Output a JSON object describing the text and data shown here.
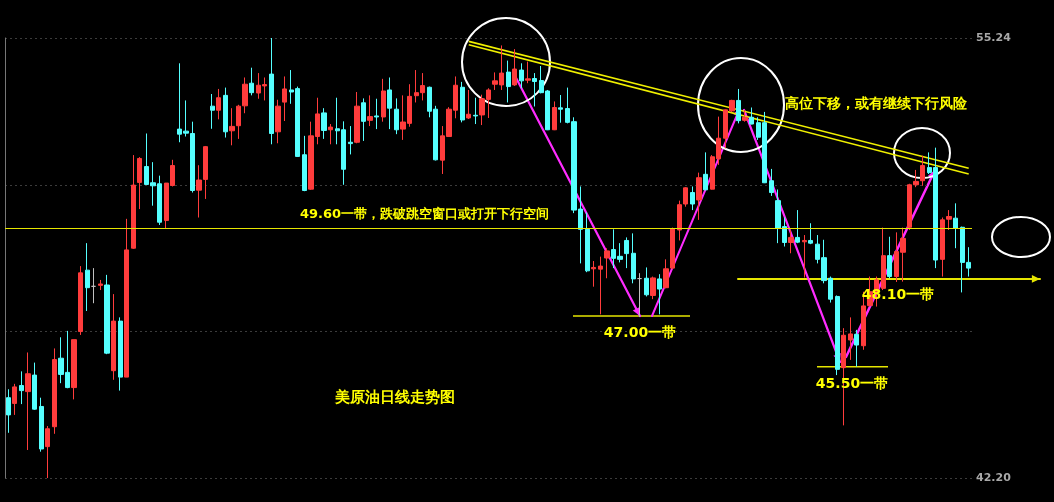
{
  "chart_data": {
    "type": "candlestick",
    "title": "美原油日线走势图",
    "categories": [
      null,
      null,
      null,
      null,
      null,
      null,
      null,
      null,
      null,
      null,
      null,
      null,
      null,
      null,
      null,
      null,
      null,
      null,
      null,
      null,
      null,
      null,
      null,
      null,
      null,
      null,
      null,
      null,
      null,
      null,
      null,
      null,
      null,
      null,
      null,
      null,
      null,
      null,
      null,
      null,
      null,
      null,
      null,
      null,
      null,
      null,
      null,
      null,
      null,
      null,
      null,
      null,
      null,
      null,
      null,
      null,
      null,
      null,
      null,
      null,
      null,
      null,
      null,
      null,
      null,
      null,
      null,
      null,
      null,
      null,
      null,
      null,
      null,
      null,
      null,
      null,
      null,
      null,
      null,
      null,
      null,
      null,
      null,
      null,
      null,
      null,
      null,
      null,
      null,
      null,
      null,
      null,
      null,
      null,
      null,
      null,
      null,
      null,
      null,
      null,
      null,
      null,
      null,
      null,
      null,
      null,
      null,
      null,
      null,
      null,
      null,
      null,
      null,
      null,
      null,
      null,
      null,
      null,
      null,
      null,
      null,
      null,
      null,
      null,
      null,
      null,
      null,
      null,
      null,
      null,
      null,
      null,
      null,
      null,
      null,
      null,
      null,
      null,
      null,
      null,
      null,
      null,
      null,
      null,
      null,
      null,
      null
    ],
    "ohlc": [
      [
        44.58,
        44.83,
        43.54,
        44.07
      ],
      [
        44.41,
        44.99,
        44.07,
        44.9
      ],
      [
        44.94,
        45.36,
        44.39,
        44.79
      ],
      [
        44.76,
        45.92,
        43.03,
        45.29
      ],
      [
        45.25,
        45.62,
        44.22,
        44.24
      ],
      [
        44.32,
        44.58,
        42.98,
        43.06
      ],
      [
        43.13,
        43.74,
        42.2,
        43.66
      ],
      [
        43.72,
        46.04,
        43.51,
        45.71
      ],
      [
        45.75,
        46.37,
        45.01,
        45.27
      ],
      [
        45.33,
        46.56,
        44.86,
        44.88
      ],
      [
        44.88,
        46.3,
        44.53,
        46.3
      ],
      [
        46.54,
        48.48,
        46.44,
        48.28
      ],
      [
        48.36,
        49.16,
        47.15,
        47.84
      ],
      [
        47.88,
        48.42,
        47.38,
        47.88
      ],
      [
        47.91,
        48.07,
        47.77,
        47.95
      ],
      [
        47.92,
        48.22,
        45.87,
        45.9
      ],
      [
        45.38,
        47.65,
        45.11,
        46.85
      ],
      [
        46.85,
        46.96,
        44.79,
        45.19
      ],
      [
        45.19,
        49.88,
        45.19,
        48.96
      ],
      [
        49.01,
        51.77,
        48.99,
        50.88
      ],
      [
        50.96,
        51.71,
        50.17,
        51.67
      ],
      [
        51.43,
        52.41,
        50.9,
        50.9
      ],
      [
        50.95,
        51.56,
        50.27,
        50.86
      ],
      [
        50.92,
        51.16,
        49.7,
        49.78
      ],
      [
        49.83,
        50.94,
        49.58,
        50.94
      ],
      [
        50.87,
        51.63,
        50.84,
        51.46
      ],
      [
        52.54,
        54.49,
        52.15,
        52.39
      ],
      [
        52.48,
        53.39,
        52.32,
        52.42
      ],
      [
        52.41,
        52.76,
        50.66,
        50.72
      ],
      [
        50.73,
        51.47,
        49.92,
        51.03
      ],
      [
        51.05,
        52.04,
        50.47,
        52.02
      ],
      [
        53.22,
        53.58,
        52.55,
        53.1
      ],
      [
        53.1,
        53.73,
        52.83,
        53.47
      ],
      [
        53.54,
        53.77,
        52.29,
        52.46
      ],
      [
        52.49,
        53.16,
        52.06,
        52.62
      ],
      [
        52.64,
        53.26,
        52.25,
        53.22
      ],
      [
        53.23,
        54.07,
        53.01,
        53.87
      ],
      [
        53.9,
        54.36,
        53.54,
        53.62
      ],
      [
        53.61,
        54.2,
        53.44,
        53.84
      ],
      [
        53.82,
        54.07,
        53.39,
        53.86
      ],
      [
        54.17,
        55.24,
        52.09,
        52.41
      ],
      [
        52.46,
        53.41,
        52.12,
        53.22
      ],
      [
        53.34,
        54.1,
        52.78,
        53.73
      ],
      [
        53.7,
        54.29,
        53.29,
        53.64
      ],
      [
        53.74,
        53.8,
        51.72,
        51.73
      ],
      [
        51.78,
        52.34,
        50.7,
        50.72
      ],
      [
        50.76,
        52.76,
        50.74,
        52.34
      ],
      [
        52.32,
        53.47,
        52.09,
        52.99
      ],
      [
        53.02,
        53.16,
        52.25,
        52.5
      ],
      [
        52.52,
        52.69,
        52.09,
        52.6
      ],
      [
        52.55,
        53.47,
        52.09,
        52.49
      ],
      [
        52.52,
        52.77,
        50.89,
        51.35
      ],
      [
        52.15,
        52.63,
        51.79,
        52.11
      ],
      [
        52.15,
        53.64,
        52.12,
        53.22
      ],
      [
        53.32,
        53.45,
        52.19,
        52.77
      ],
      [
        52.8,
        53.54,
        52.63,
        52.91
      ],
      [
        52.93,
        53.44,
        52.54,
        52.9
      ],
      [
        52.9,
        54.03,
        52.76,
        53.67
      ],
      [
        53.7,
        54.07,
        52.54,
        53.16
      ],
      [
        53.13,
        53.45,
        52.39,
        52.52
      ],
      [
        52.54,
        53.54,
        52.22,
        52.75
      ],
      [
        52.71,
        53.87,
        52.61,
        53.51
      ],
      [
        53.53,
        54.29,
        53.33,
        53.62
      ],
      [
        53.62,
        54.2,
        53.39,
        53.83
      ],
      [
        53.78,
        53.8,
        52.89,
        53.07
      ],
      [
        53.13,
        53.23,
        51.61,
        51.63
      ],
      [
        51.62,
        52.63,
        51.21,
        52.34
      ],
      [
        52.32,
        53.19,
        52.31,
        53.13
      ],
      [
        53.1,
        54.1,
        52.86,
        53.84
      ],
      [
        53.78,
        53.94,
        52.74,
        52.81
      ],
      [
        52.87,
        53.7,
        52.84,
        52.98
      ],
      [
        52.95,
        53.47,
        52.69,
        52.93
      ],
      [
        52.96,
        53.56,
        52.66,
        53.44
      ],
      [
        53.42,
        53.75,
        52.87,
        53.7
      ],
      [
        53.87,
        54.22,
        53.7,
        53.97
      ],
      [
        53.85,
        55.02,
        53.7,
        54.2
      ],
      [
        54.23,
        54.57,
        53.33,
        53.8
      ],
      [
        53.85,
        54.91,
        53.82,
        54.32
      ],
      [
        54.29,
        54.49,
        53.75,
        53.97
      ],
      [
        53.99,
        54.54,
        53.9,
        54.03
      ],
      [
        54.04,
        54.2,
        53.21,
        53.95
      ],
      [
        53.98,
        54.41,
        53.6,
        53.62
      ],
      [
        53.67,
        53.7,
        52.51,
        52.52
      ],
      [
        52.52,
        53.36,
        52.51,
        53.18
      ],
      [
        53.17,
        53.55,
        52.73,
        53.13
      ],
      [
        53.15,
        53.77,
        52.71,
        52.74
      ],
      [
        52.76,
        52.89,
        50.05,
        50.14
      ],
      [
        50.17,
        50.84,
        48.56,
        49.57
      ],
      [
        49.57,
        50.07,
        48.3,
        48.34
      ],
      [
        48.4,
        48.63,
        47.87,
        48.44
      ],
      [
        48.39,
        48.76,
        47.05,
        48.48
      ],
      [
        48.72,
        49.01,
        48.12,
        48.93
      ],
      [
        48.97,
        49.57,
        48.42,
        48.71
      ],
      [
        48.77,
        49.16,
        48.59,
        48.68
      ],
      [
        49.24,
        49.33,
        48.42,
        48.85
      ],
      [
        48.86,
        49.45,
        47.97,
        48.1
      ],
      [
        48.11,
        48.27,
        46.98,
        48.11
      ],
      [
        48.12,
        48.44,
        47.58,
        47.63
      ],
      [
        47.61,
        48.17,
        47.5,
        48.13
      ],
      [
        48.1,
        48.24,
        47.05,
        47.8
      ],
      [
        47.84,
        48.68,
        47.82,
        48.4
      ],
      [
        48.42,
        49.62,
        48.39,
        49.58
      ],
      [
        49.55,
        50.42,
        49.24,
        50.3
      ],
      [
        50.32,
        50.82,
        50.24,
        50.8
      ],
      [
        50.66,
        50.84,
        50.14,
        50.32
      ],
      [
        50.44,
        51.25,
        49.85,
        51.1
      ],
      [
        51.2,
        51.85,
        50.73,
        50.74
      ],
      [
        50.76,
        51.77,
        50.75,
        51.72
      ],
      [
        51.66,
        52.91,
        51.48,
        52.27
      ],
      [
        52.27,
        53.12,
        51.97,
        53.11
      ],
      [
        53.08,
        53.41,
        53.04,
        53.39
      ],
      [
        53.39,
        53.73,
        52.71,
        52.79
      ],
      [
        52.8,
        53.11,
        52.76,
        52.89
      ],
      [
        52.89,
        53.18,
        52.68,
        52.69
      ],
      [
        52.73,
        52.89,
        52.22,
        52.3
      ],
      [
        52.73,
        53.05,
        50.94,
        50.95
      ],
      [
        51.01,
        51.36,
        50.56,
        50.66
      ],
      [
        50.42,
        50.75,
        49.16,
        49.6
      ],
      [
        49.65,
        49.92,
        49.06,
        49.18
      ],
      [
        49.18,
        49.55,
        48.86,
        49.33
      ],
      [
        49.33,
        50.14,
        49.16,
        49.19
      ],
      [
        49.2,
        49.4,
        48.14,
        49.24
      ],
      [
        49.24,
        49.75,
        49.13,
        49.16
      ],
      [
        49.13,
        49.4,
        48.56,
        48.68
      ],
      [
        48.73,
        49.26,
        47.97,
        48.05
      ],
      [
        48.12,
        48.17,
        47.4,
        47.5
      ],
      [
        47.58,
        47.61,
        45.25,
        45.42
      ],
      [
        45.47,
        46.64,
        43.76,
        46.43
      ],
      [
        46.29,
        46.96,
        45.7,
        46.47
      ],
      [
        46.46,
        46.59,
        45.5,
        46.14
      ],
      [
        46.12,
        47.72,
        46.0,
        47.3
      ],
      [
        47.31,
        48.17,
        47.28,
        47.72
      ],
      [
        47.72,
        48.17,
        47.28,
        48.07
      ],
      [
        47.82,
        49.62,
        47.77,
        48.79
      ],
      [
        48.79,
        49.35,
        48.12,
        48.17
      ],
      [
        48.17,
        49.48,
        48.01,
        48.91
      ],
      [
        48.89,
        49.62,
        48.02,
        49.3
      ],
      [
        49.63,
        50.92,
        49.55,
        50.89
      ],
      [
        50.89,
        51.33,
        50.82,
        50.99
      ],
      [
        51.01,
        51.75,
        50.86,
        51.46
      ],
      [
        51.4,
        51.85,
        51.21,
        51.25
      ],
      [
        51.4,
        51.99,
        48.42,
        48.66
      ],
      [
        48.68,
        49.92,
        48.17,
        49.85
      ],
      [
        49.87,
        50.14,
        49.55,
        49.95
      ],
      [
        49.9,
        50.34,
        49.01,
        49.6
      ],
      [
        49.63,
        49.65,
        47.7,
        48.59
      ],
      [
        48.59,
        49.04,
        48.17,
        48.42
      ]
    ],
    "colors": [
      "#55ffff",
      "#ff3c3c",
      "#55ffff",
      "#ff3c3c",
      "#55ffff",
      "#55ffff",
      "#ff3c3c",
      "#ff3c3c",
      "#55ffff",
      "#55ffff",
      "#ff3c3c",
      "#ff3c3c",
      "#55ffff",
      "#c0c0c0",
      "#ff3c3c",
      "#55ffff",
      "#ff3c3c",
      "#55ffff",
      "#ff3c3c",
      "#ff3c3c",
      "#ff3c3c",
      "#55ffff",
      "#55ffff",
      "#55ffff",
      "#ff3c3c",
      "#ff3c3c",
      "#55ffff",
      "#55ffff",
      "#55ffff",
      "#ff3c3c",
      "#ff3c3c",
      "#55ffff",
      "#ff3c3c",
      "#55ffff",
      "#ff3c3c",
      "#ff3c3c",
      "#ff3c3c",
      "#55ffff",
      "#ff3c3c",
      "#ff3c3c",
      "#55ffff",
      "#ff3c3c",
      "#ff3c3c",
      "#55ffff",
      "#55ffff",
      "#55ffff",
      "#ff3c3c",
      "#ff3c3c",
      "#55ffff",
      "#ff3c3c",
      "#55ffff",
      "#55ffff",
      "#55ffff",
      "#ff3c3c",
      "#55ffff",
      "#ff3c3c",
      "#55ffff",
      "#ff3c3c",
      "#55ffff",
      "#55ffff",
      "#ff3c3c",
      "#ff3c3c",
      "#ff3c3c",
      "#ff3c3c",
      "#55ffff",
      "#55ffff",
      "#ff3c3c",
      "#ff3c3c",
      "#ff3c3c",
      "#55ffff",
      "#ff3c3c",
      "#55ffff",
      "#ff3c3c",
      "#ff3c3c",
      "#ff3c3c",
      "#ff3c3c",
      "#55ffff",
      "#ff3c3c",
      "#55ffff",
      "#ff3c3c",
      "#55ffff",
      "#55ffff",
      "#55ffff",
      "#ff3c3c",
      "#55ffff",
      "#55ffff",
      "#55ffff",
      "#55ffff",
      "#55ffff",
      "#ff3c3c",
      "#ff3c3c",
      "#ff3c3c",
      "#55ffff",
      "#55ffff",
      "#55ffff",
      "#55ffff",
      "#c0c0c0",
      "#55ffff",
      "#ff3c3c",
      "#55ffff",
      "#ff3c3c",
      "#ff3c3c",
      "#ff3c3c",
      "#ff3c3c",
      "#55ffff",
      "#ff3c3c",
      "#55ffff",
      "#ff3c3c",
      "#ff3c3c",
      "#ff3c3c",
      "#ff3c3c",
      "#55ffff",
      "#ff3c3c",
      "#55ffff",
      "#55ffff",
      "#55ffff",
      "#55ffff",
      "#55ffff",
      "#55ffff",
      "#ff3c3c",
      "#55ffff",
      "#ff3c3c",
      "#55ffff",
      "#55ffff",
      "#55ffff",
      "#55ffff",
      "#55ffff",
      "#ff3c3c",
      "#ff3c3c",
      "#55ffff",
      "#ff3c3c",
      "#ff3c3c",
      "#ff3c3c",
      "#ff3c3c",
      "#55ffff",
      "#ff3c3c",
      "#ff3c3c",
      "#ff3c3c",
      "#ff3c3c",
      "#ff3c3c",
      "#55ffff",
      "#55ffff",
      "#ff3c3c",
      "#ff3c3c",
      "#55ffff",
      "#55ffff",
      "#55ffff"
    ],
    "series": [
      {
        "type": "line",
        "color": "#f0f000",
        "values": [
          null,
          null,
          null,
          null,
          null,
          null,
          null,
          null,
          null,
          null,
          null,
          null,
          null,
          null,
          null,
          null,
          null,
          null,
          null,
          null,
          null,
          null,
          null,
          null,
          null,
          null,
          null,
          null,
          null,
          null,
          null,
          null,
          null,
          null,
          null,
          null,
          null,
          null,
          null,
          null,
          null,
          null,
          null,
          null,
          null,
          null,
          null,
          null,
          null,
          null,
          null,
          null,
          null,
          null,
          null,
          null,
          null,
          null,
          null,
          null,
          null,
          null,
          null,
          null,
          null,
          null,
          null,
          null,
          null,
          null,
          55.14,
          null,
          null,
          null,
          null,
          null,
          null,
          null,
          null,
          null,
          null,
          null,
          null,
          null,
          null,
          null,
          null,
          null,
          null,
          null,
          null,
          null,
          null,
          null,
          null,
          null,
          null,
          null,
          null,
          null,
          null,
          null,
          null,
          null,
          null,
          null,
          null,
          null,
          null,
          null,
          null,
          null,
          null,
          null,
          null,
          null,
          null,
          null,
          null,
          null,
          null,
          null,
          null,
          null,
          null,
          null,
          null,
          null,
          null,
          null,
          null,
          null,
          null,
          null,
          null,
          null,
          null,
          null,
          null,
          null,
          null,
          null,
          null,
          null,
          null,
          null,
          51.38
        ]
      },
      {
        "type": "line",
        "color": "#f0f000",
        "values": [
          null,
          null,
          null,
          null,
          null,
          null,
          null,
          null,
          null,
          null,
          null,
          null,
          null,
          null,
          null,
          null,
          null,
          null,
          null,
          null,
          null,
          null,
          null,
          null,
          null,
          null,
          null,
          null,
          null,
          null,
          null,
          null,
          null,
          null,
          null,
          null,
          null,
          null,
          null,
          null,
          null,
          null,
          null,
          null,
          null,
          null,
          null,
          null,
          null,
          null,
          null,
          null,
          null,
          null,
          null,
          null,
          null,
          null,
          null,
          null,
          null,
          null,
          null,
          null,
          null,
          null,
          null,
          null,
          null,
          null,
          55.04,
          null,
          null,
          null,
          null,
          null,
          null,
          null,
          null,
          null,
          null,
          null,
          null,
          null,
          null,
          null,
          null,
          null,
          null,
          null,
          null,
          null,
          null,
          null,
          null,
          null,
          null,
          null,
          null,
          null,
          null,
          null,
          null,
          null,
          null,
          null,
          null,
          null,
          null,
          null,
          null,
          null,
          null,
          null,
          null,
          null,
          null,
          null,
          null,
          null,
          null,
          null,
          null,
          null,
          null,
          null,
          null,
          null,
          null,
          null,
          null,
          null,
          null,
          null,
          null,
          null,
          null,
          null,
          null,
          null,
          null,
          null,
          null,
          null,
          null,
          null,
          51.21
        ]
      }
    ],
    "ylim": [
      42.2,
      55.24
    ],
    "yticks": [
      {
        "value": 42.2,
        "label": "42.20"
      },
      {
        "value": 46.55,
        "label": null
      },
      {
        "value": 50.89,
        "label": null
      },
      {
        "value": 55.24,
        "label": "55.24"
      }
    ],
    "grid": "y",
    "tick_labels": "y",
    "ref_lines": [
      {
        "axis": "y",
        "value": 49.6,
        "label": "49.60一带，跌破跳空窗口或打开下行空间",
        "color": "#e6e600"
      }
    ],
    "annotations": [
      {
        "text": "47.00一带",
        "y": 47.0
      },
      {
        "text": "45.50一带",
        "y": 45.5
      },
      {
        "text": "48.10一带",
        "y": 48.1
      },
      "高位下移，或有继续下行风险"
    ]
  }
}
